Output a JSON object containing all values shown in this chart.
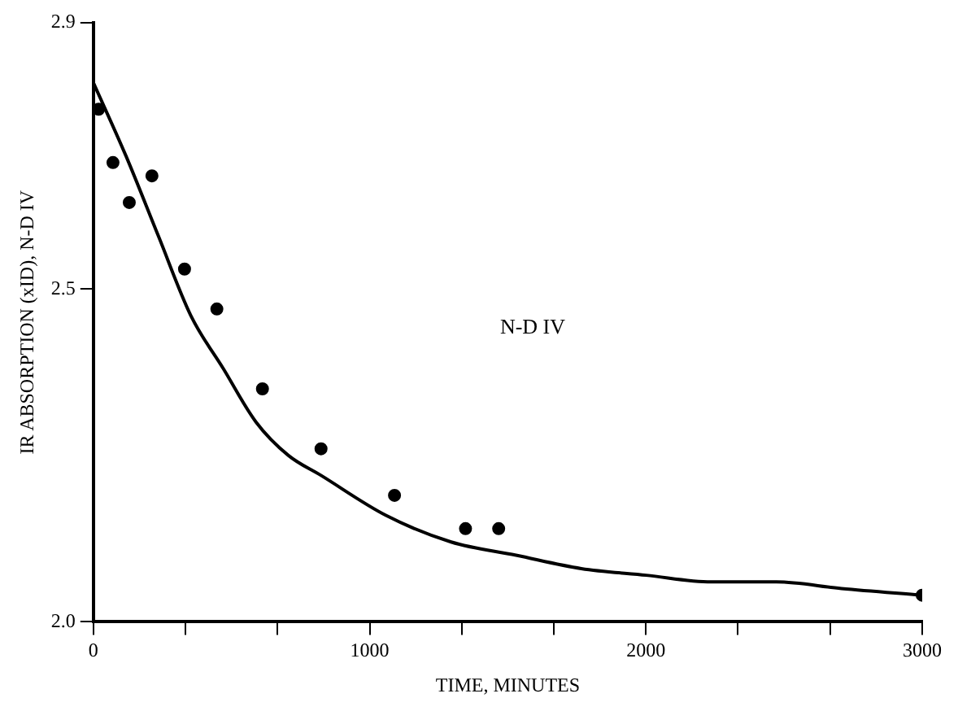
{
  "chart_data": {
    "type": "scatter",
    "xlabel": "TIME, MINUTES",
    "ylabel": "IR ABSORPTION (xID), N-D IV",
    "xlim": [
      0,
      3000
    ],
    "xticks": [
      0,
      {
        "value": 333,
        "label": null
      },
      {
        "value": 667,
        "label": null
      },
      {
        "value": 1000,
        "label": "1000"
      },
      {
        "value": 1333,
        "label": null
      },
      {
        "value": 1667,
        "label": null
      },
      2000,
      {
        "value": 2333,
        "label": null
      },
      {
        "value": 2667,
        "label": null
      },
      3000
    ],
    "ylim": [
      2.0,
      2.9
    ],
    "yticks": [
      {
        "value": 2.0,
        "label": "2.0"
      },
      2.5,
      2.9
    ],
    "grid": false,
    "legend": false,
    "marker": "circle",
    "annotations": [
      "N-D IV"
    ],
    "series": [
      {
        "color": "#000000",
        "x": [
          19,
          71,
          130,
          212,
          330,
          447,
          612,
          824,
          1090,
          1347,
          1467,
          3000
        ],
        "values": [
          2.77,
          2.69,
          2.63,
          2.67,
          2.53,
          2.47,
          2.35,
          2.26,
          2.19,
          2.14,
          2.14,
          2.04
        ]
      },
      {
        "type": "line",
        "color": "#000000",
        "marker": "none",
        "x": [
          0,
          118,
          235,
          353,
          471,
          589,
          706,
          824,
          1059,
          1295,
          1530,
          1766,
          2001,
          2237,
          2472,
          2708,
          3000
        ],
        "values": [
          2.81,
          2.7,
          2.58,
          2.46,
          2.38,
          2.3,
          2.25,
          2.22,
          2.16,
          2.12,
          2.1,
          2.08,
          2.07,
          2.06,
          2.06,
          2.05,
          2.04
        ]
      }
    ]
  }
}
